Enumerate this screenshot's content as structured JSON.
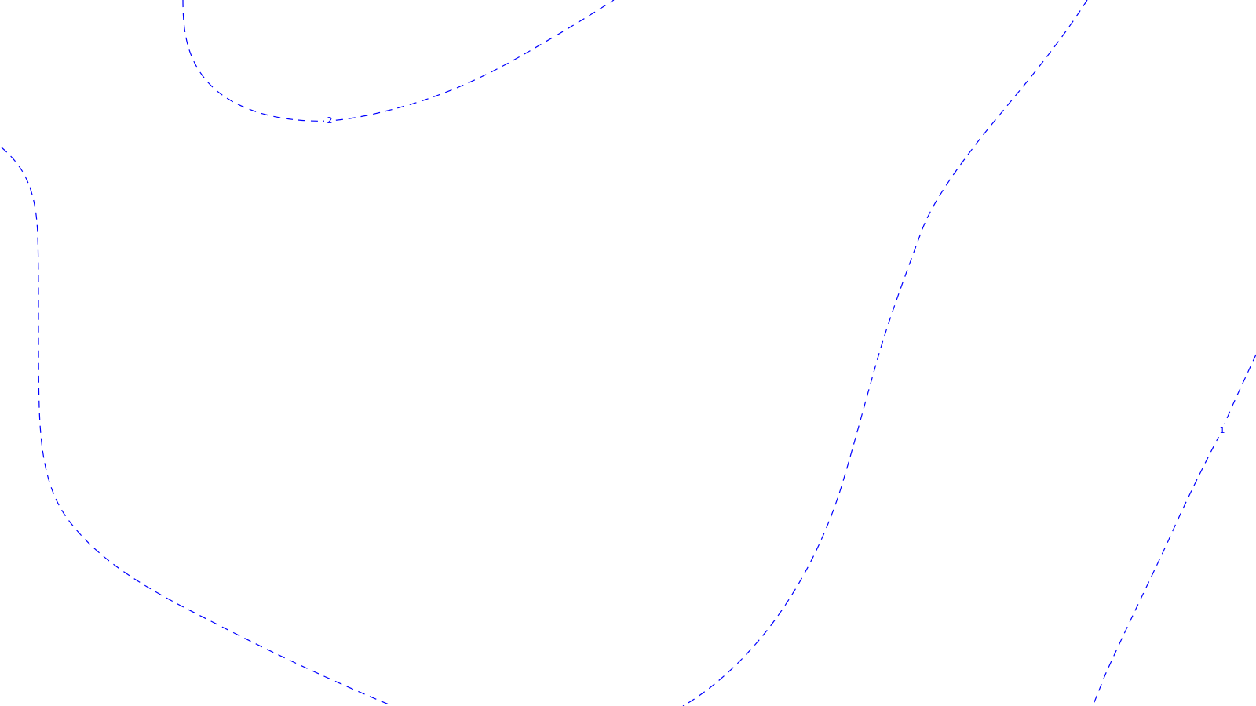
{
  "map": {
    "background_color": "#ffffff",
    "contour_color": "#0000ff",
    "contour_style": "dashed",
    "contours": [
      {
        "id": "contour-2-upper",
        "label": "2"
      },
      {
        "id": "contour-left",
        "label": ""
      },
      {
        "id": "contour-center",
        "label": ""
      },
      {
        "id": "contour-1-right",
        "label": "1"
      }
    ]
  }
}
